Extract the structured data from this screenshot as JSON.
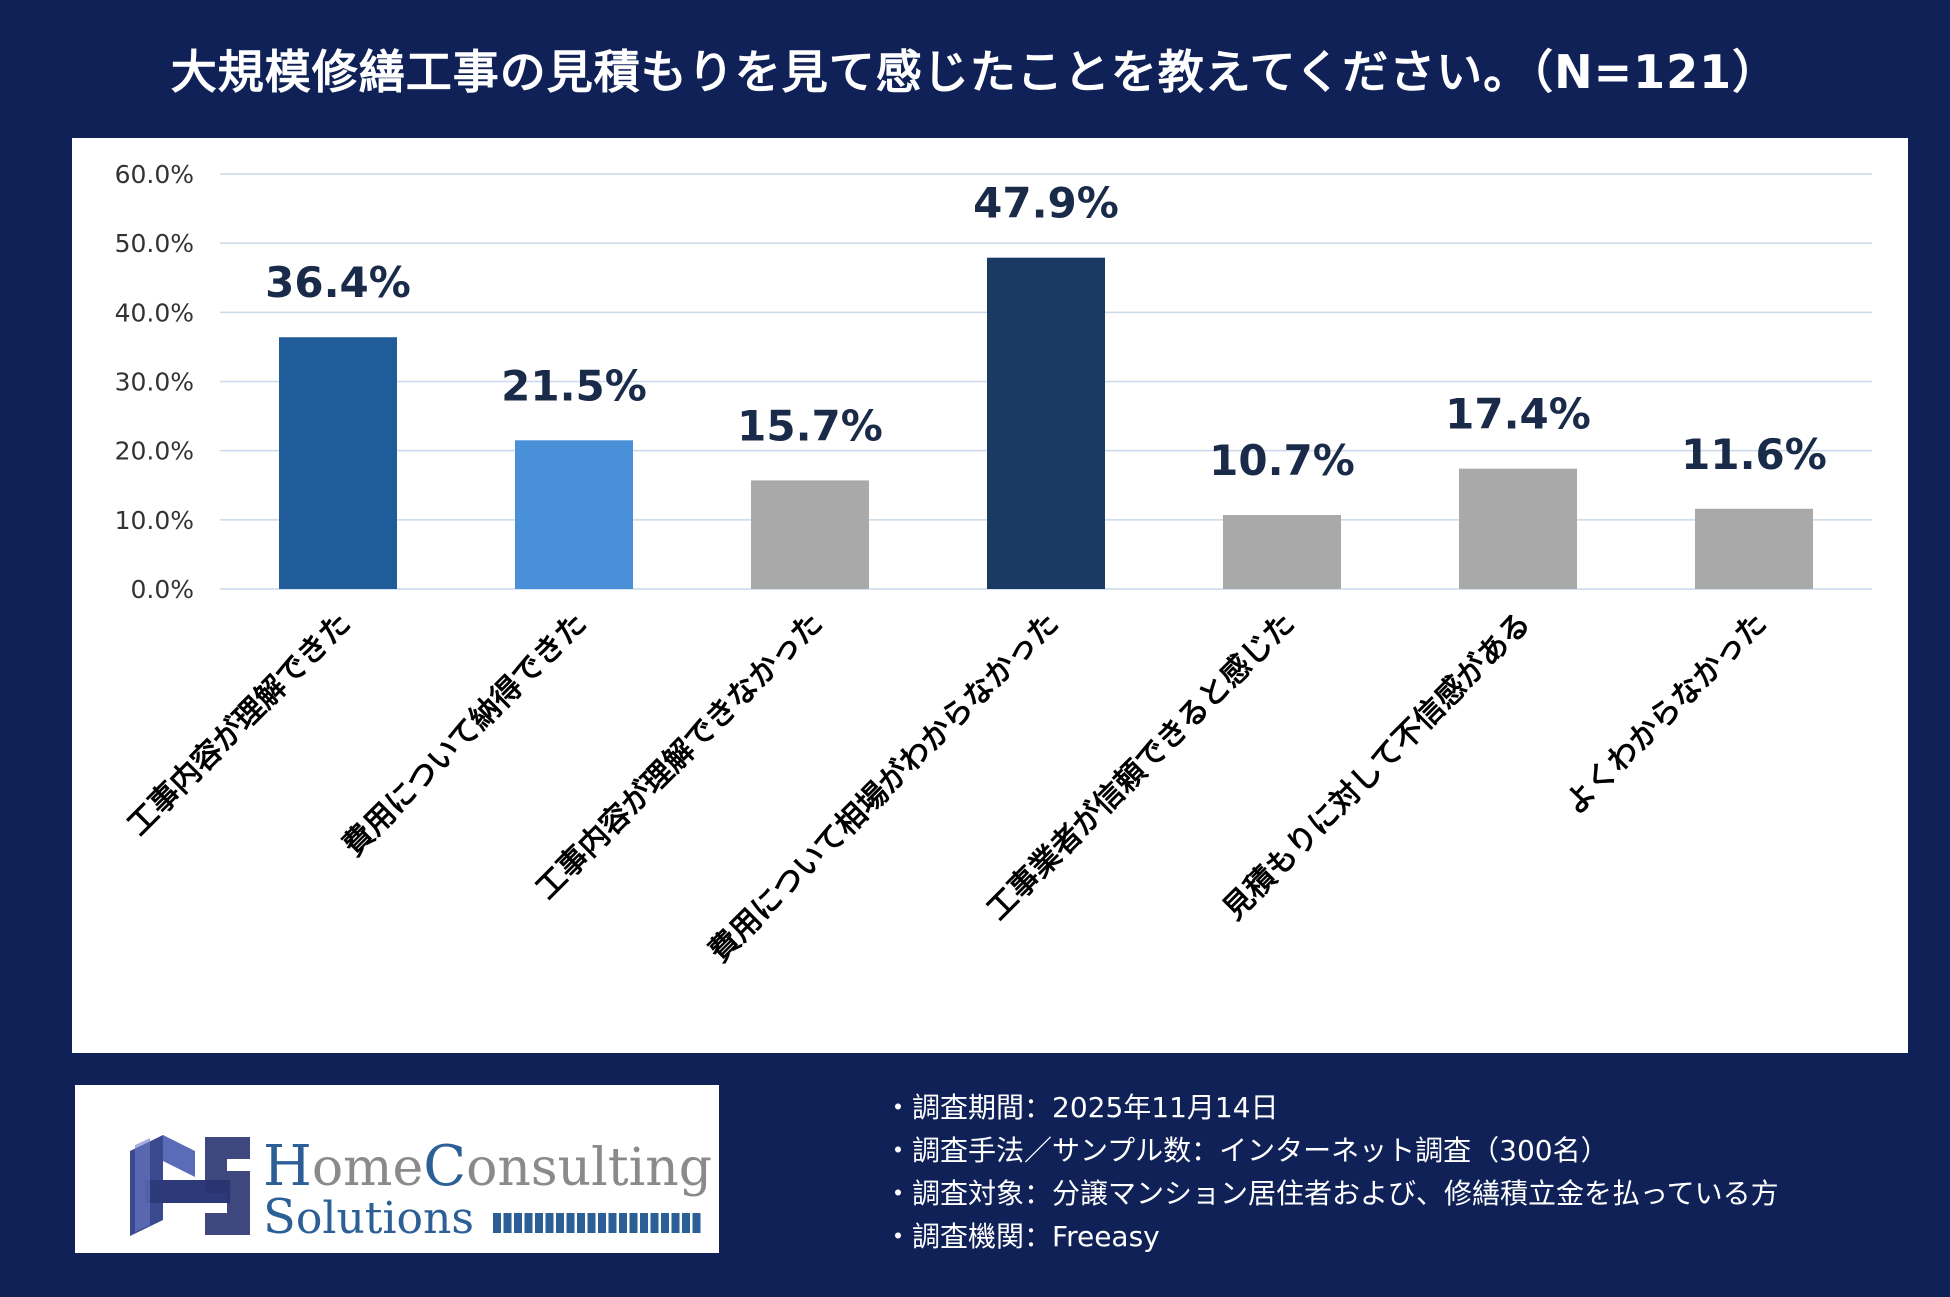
{
  "title": "大規模修繕工事の見積もりを見て感じたことを教えてください。（N=121）",
  "chart_data": {
    "type": "bar",
    "categories": [
      "工事内容が理解できた",
      "費用について納得できた",
      "工事内容が理解できなかった",
      "費用について相場がわからなかった",
      "工事業者が信頼できると感じた",
      "見積もりに対して不信感がある",
      "よくわからなかった"
    ],
    "values": [
      36.4,
      21.5,
      15.7,
      47.9,
      10.7,
      17.4,
      11.6
    ],
    "value_labels": [
      "36.4%",
      "21.5%",
      "15.7%",
      "47.9%",
      "10.7%",
      "17.4%",
      "11.6%"
    ],
    "bar_colors": [
      "#1f5c99",
      "#4a90d9",
      "#a9a9a9",
      "#1a3a63",
      "#a9a9a9",
      "#a9a9a9",
      "#a9a9a9"
    ],
    "yticks": [
      "0.0%",
      "10.0%",
      "20.0%",
      "30.0%",
      "40.0%",
      "50.0%",
      "60.0%"
    ],
    "ylim": [
      0,
      60
    ],
    "grid": true,
    "xlabel": "",
    "ylabel": ""
  },
  "logo": {
    "line1_cap1": "H",
    "line1_rest1": "ome",
    "line1_cap2": "C",
    "line1_rest2": "onsulting",
    "line2_cap": "S",
    "line2_rest": "olutions"
  },
  "notes": [
    "・調査期間：2025年11月14日",
    "・調査手法／サンプル数：インターネット調査（300名）",
    "・調査対象：分譲マンション居住者および、修繕積立金を払っている方",
    "・調査機関：Freeasy"
  ],
  "colors": {
    "background": "#0f2157",
    "panel": "#ffffff",
    "grid": "#c9d9ea",
    "value_label": "#1a2b4a"
  }
}
